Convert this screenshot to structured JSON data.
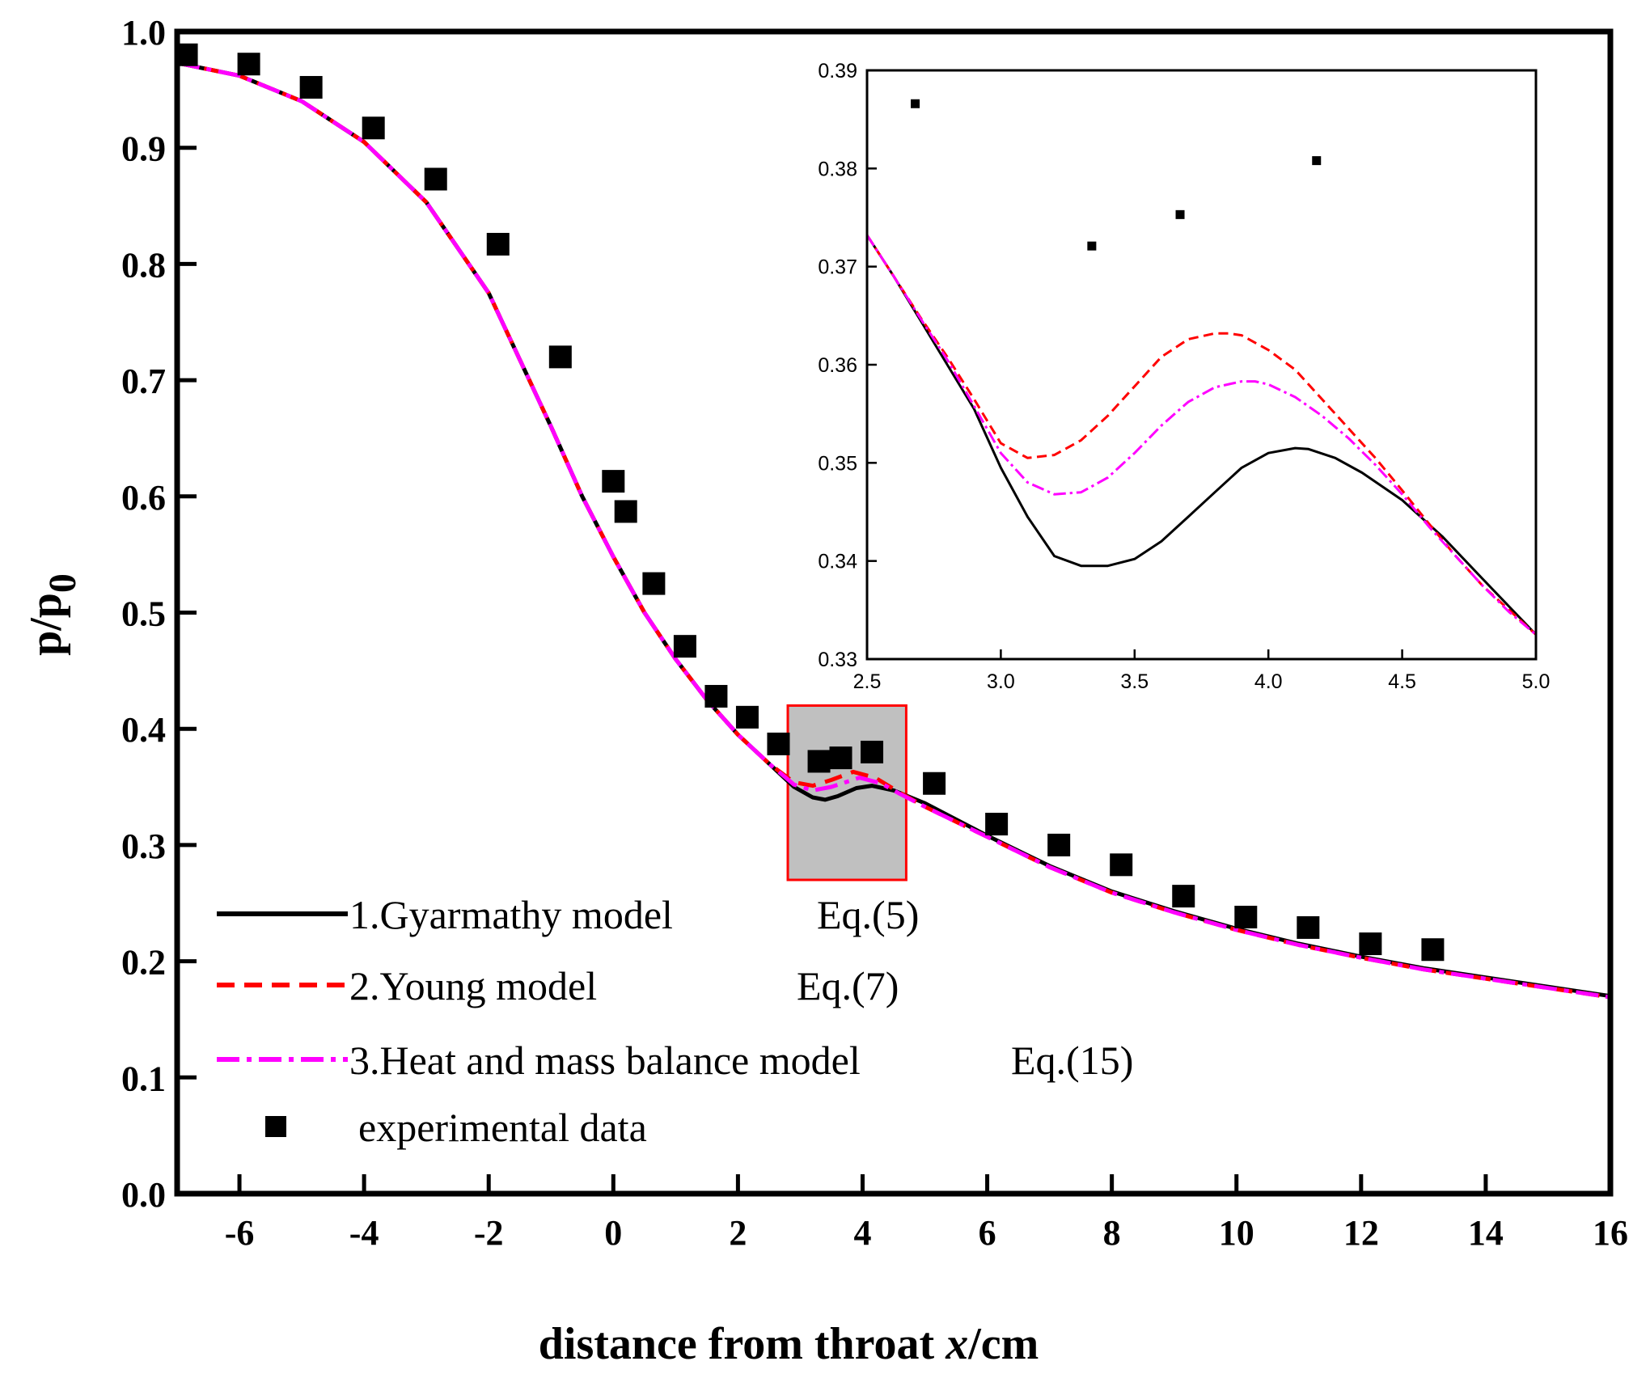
{
  "chart_data": [
    {
      "type": "line",
      "title": "",
      "xlabel": {
        "prefix": "distance from throat ",
        "var": "x",
        "suffix": "/cm"
      },
      "ylabel": {
        "base": "p/p",
        "sub": "0"
      },
      "xlim": [
        -7,
        16
      ],
      "ylim": [
        0.0,
        1.0
      ],
      "xticks": [
        -6,
        -4,
        -2,
        0,
        2,
        4,
        6,
        8,
        10,
        12,
        14,
        16
      ],
      "yticks": [
        0.0,
        0.1,
        0.2,
        0.3,
        0.4,
        0.5,
        0.6,
        0.7,
        0.8,
        0.9,
        1.0
      ],
      "xtick_labels": [
        "-6",
        "-4",
        "-2",
        "0",
        "2",
        "4",
        "6",
        "8",
        "10",
        "12",
        "14",
        "16"
      ],
      "ytick_labels": [
        "0.0",
        "0.1",
        "0.2",
        "0.3",
        "0.4",
        "0.5",
        "0.6",
        "0.7",
        "0.8",
        "0.9",
        "1.0"
      ],
      "legend_position": "bottom-left",
      "series": [
        {
          "name": "1.Gyarmathy model",
          "equation": "Eq.(5)",
          "color": "#000000",
          "style": "solid",
          "x": [
            -7,
            -6,
            -5,
            -4,
            -3,
            -2,
            -1,
            -0.5,
            0,
            0.5,
            1,
            1.5,
            2,
            2.5,
            2.9,
            3.2,
            3.4,
            3.6,
            3.9,
            4.15,
            4.5,
            5,
            6,
            7,
            8,
            9,
            10,
            11,
            12,
            13,
            14,
            15,
            16
          ],
          "values": [
            0.973,
            0.962,
            0.94,
            0.905,
            0.853,
            0.775,
            0.66,
            0.6,
            0.548,
            0.5,
            0.46,
            0.425,
            0.395,
            0.37,
            0.35,
            0.341,
            0.339,
            0.342,
            0.349,
            0.351,
            0.347,
            0.336,
            0.308,
            0.282,
            0.26,
            0.243,
            0.228,
            0.215,
            0.204,
            0.194,
            0.186,
            0.178,
            0.17
          ]
        },
        {
          "name": "2.Young model",
          "equation": "Eq.(7)",
          "color": "#ff0000",
          "style": "dashed",
          "x": [
            -7,
            -6,
            -5,
            -4,
            -3,
            -2,
            -1,
            -0.5,
            0,
            0.5,
            1,
            1.5,
            2,
            2.5,
            2.9,
            3.2,
            3.5,
            3.85,
            4.2,
            4.6,
            5,
            6,
            7,
            8,
            9,
            10,
            11,
            12,
            13,
            14,
            15,
            16
          ],
          "values": [
            0.973,
            0.962,
            0.94,
            0.905,
            0.853,
            0.775,
            0.66,
            0.6,
            0.548,
            0.5,
            0.46,
            0.425,
            0.395,
            0.37,
            0.354,
            0.351,
            0.356,
            0.363,
            0.358,
            0.345,
            0.333,
            0.307,
            0.281,
            0.259,
            0.242,
            0.227,
            0.214,
            0.203,
            0.193,
            0.185,
            0.177,
            0.169
          ]
        },
        {
          "name": "3.Heat and mass balance model",
          "equation": "Eq.(15)",
          "color": "#ff00ff",
          "style": "dashdot",
          "x": [
            -7,
            -6,
            -5,
            -4,
            -3,
            -2,
            -1,
            -0.5,
            0,
            0.5,
            1,
            1.5,
            2,
            2.5,
            2.9,
            3.2,
            3.5,
            3.95,
            4.3,
            4.6,
            5,
            6,
            7,
            8,
            9,
            10,
            11,
            12,
            13,
            14,
            15,
            16
          ],
          "values": [
            0.973,
            0.962,
            0.94,
            0.905,
            0.853,
            0.775,
            0.66,
            0.6,
            0.548,
            0.5,
            0.46,
            0.425,
            0.395,
            0.37,
            0.352,
            0.347,
            0.35,
            0.358,
            0.353,
            0.344,
            0.333,
            0.307,
            0.281,
            0.259,
            0.242,
            0.227,
            0.214,
            0.203,
            0.193,
            0.185,
            0.177,
            0.169
          ]
        }
      ],
      "scatter": {
        "name": "experimental data",
        "color": "#000000",
        "x": [
          -6.85,
          -5.85,
          -4.85,
          -3.85,
          -2.85,
          -1.85,
          -0.85,
          0.0,
          0.2,
          0.65,
          1.15,
          1.65,
          2.15,
          2.65,
          3.3,
          3.65,
          4.15,
          5.15,
          6.15,
          7.15,
          8.15,
          9.15,
          10.15,
          11.15,
          12.15,
          13.15
        ],
        "values": [
          0.98,
          0.972,
          0.952,
          0.917,
          0.873,
          0.817,
          0.72,
          0.613,
          0.587,
          0.525,
          0.471,
          0.428,
          0.41,
          0.387,
          0.372,
          0.375,
          0.38,
          0.353,
          0.318,
          0.3,
          0.283,
          0.256,
          0.238,
          0.229,
          0.215,
          0.21
        ]
      },
      "highlight_region": {
        "xrange": [
          2.8,
          4.7
        ],
        "yrange": [
          0.27,
          0.42
        ],
        "fill": "#c0c0c0",
        "stroke": "#ff0000"
      }
    },
    {
      "type": "line",
      "title": "",
      "role": "inset",
      "xlim": [
        2.5,
        5.0
      ],
      "ylim": [
        0.33,
        0.39
      ],
      "xticks": [
        2.5,
        3.0,
        3.5,
        4.0,
        4.5,
        5.0
      ],
      "yticks": [
        0.33,
        0.34,
        0.35,
        0.36,
        0.37,
        0.38,
        0.39
      ],
      "xtick_labels": [
        "2.5",
        "3.0",
        "3.5",
        "4.0",
        "4.5",
        "5.0"
      ],
      "ytick_labels": [
        "0.33",
        "0.34",
        "0.35",
        "0.36",
        "0.37",
        "0.38",
        "0.39"
      ],
      "series": [
        {
          "name": "1.Gyarmathy model",
          "color": "#000000",
          "style": "solid",
          "x": [
            2.5,
            2.6,
            2.7,
            2.8,
            2.9,
            3.0,
            3.1,
            3.2,
            3.3,
            3.4,
            3.5,
            3.6,
            3.7,
            3.8,
            3.9,
            4.0,
            4.1,
            4.15,
            4.25,
            4.35,
            4.5,
            4.65,
            4.8,
            5.0
          ],
          "values": [
            0.3732,
            0.369,
            0.3645,
            0.36,
            0.3555,
            0.3495,
            0.3445,
            0.3405,
            0.3395,
            0.3395,
            0.3402,
            0.342,
            0.3445,
            0.347,
            0.3495,
            0.351,
            0.3515,
            0.3514,
            0.3505,
            0.349,
            0.3462,
            0.3425,
            0.3382,
            0.3325
          ]
        },
        {
          "name": "2.Young model",
          "color": "#ff0000",
          "style": "dashed",
          "x": [
            2.5,
            2.6,
            2.7,
            2.8,
            2.9,
            3.0,
            3.1,
            3.2,
            3.3,
            3.4,
            3.5,
            3.6,
            3.7,
            3.8,
            3.85,
            3.9,
            4.0,
            4.1,
            4.2,
            4.3,
            4.4,
            4.5,
            4.6,
            4.7,
            4.8,
            4.9,
            5.0
          ],
          "values": [
            0.3732,
            0.369,
            0.3648,
            0.3608,
            0.3565,
            0.352,
            0.3505,
            0.3508,
            0.3523,
            0.3548,
            0.3578,
            0.3608,
            0.3626,
            0.3632,
            0.3632,
            0.363,
            0.3615,
            0.3595,
            0.3565,
            0.3535,
            0.3505,
            0.3472,
            0.3438,
            0.3405,
            0.3375,
            0.335,
            0.3325
          ]
        },
        {
          "name": "3.Heat and mass balance model",
          "color": "#ff00ff",
          "style": "dashdot",
          "x": [
            2.5,
            2.6,
            2.7,
            2.8,
            2.9,
            3.0,
            3.1,
            3.2,
            3.3,
            3.4,
            3.5,
            3.6,
            3.7,
            3.8,
            3.9,
            3.95,
            4.0,
            4.1,
            4.2,
            4.3,
            4.4,
            4.5,
            4.6,
            4.7,
            4.8,
            4.9,
            5.0
          ],
          "values": [
            0.3732,
            0.369,
            0.3647,
            0.3605,
            0.3558,
            0.351,
            0.348,
            0.3468,
            0.347,
            0.3485,
            0.351,
            0.3538,
            0.3562,
            0.3577,
            0.3583,
            0.3583,
            0.358,
            0.3567,
            0.3548,
            0.3525,
            0.3498,
            0.3468,
            0.3435,
            0.3405,
            0.3375,
            0.3348,
            0.3325
          ]
        }
      ],
      "scatter": {
        "name": "experimental data",
        "color": "#000000",
        "x": [
          2.68,
          3.34,
          3.67,
          4.18
        ],
        "values": [
          0.3866,
          0.3721,
          0.3753,
          0.3808
        ]
      }
    }
  ]
}
